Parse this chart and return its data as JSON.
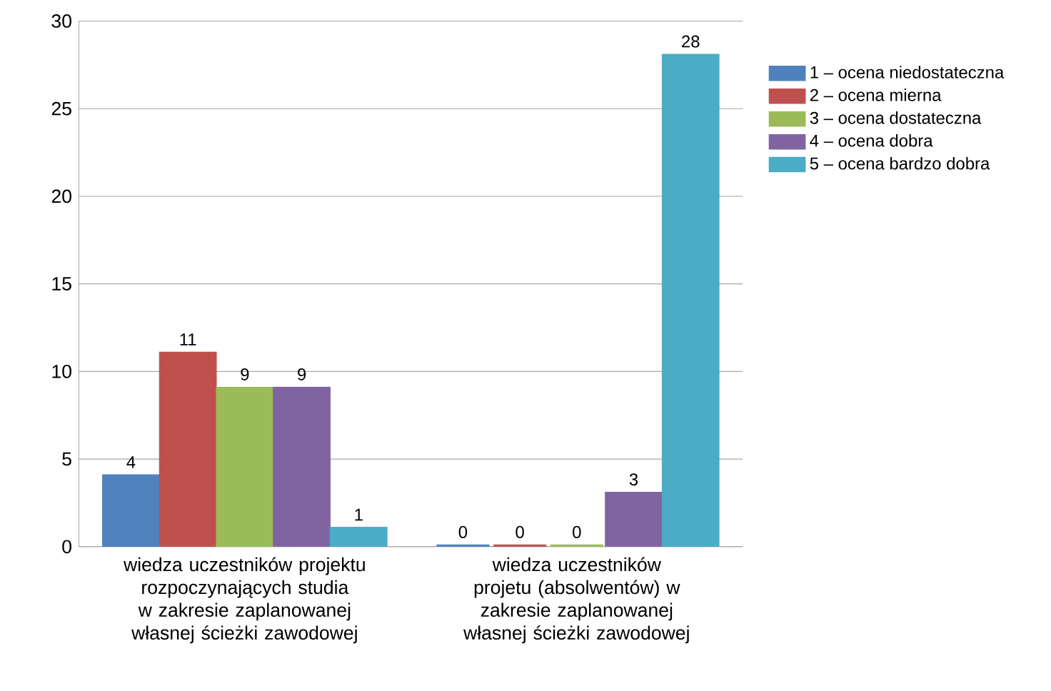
{
  "chart_data": {
    "type": "bar",
    "categories": [
      "wiedza uczestników projektu rozpoczynających studia w zakresie zaplanowanej własnej ścieżki zawodowej",
      "wiedza uczestników projetu (absolwentów) w zakresie zaplanowanej własnej ścieżki zawodowej"
    ],
    "series": [
      {
        "name": "1 – ocena niedostateczna",
        "color": "#4f81bd",
        "values": [
          4,
          0
        ]
      },
      {
        "name": "2 – ocena mierna",
        "color": "#c0504d",
        "values": [
          11,
          0
        ]
      },
      {
        "name": "3 – ocena dostateczna",
        "color": "#9bbb59",
        "values": [
          9,
          0
        ]
      },
      {
        "name": "4 – ocena dobra",
        "color": "#8064a2",
        "values": [
          9,
          3
        ]
      },
      {
        "name": "5 – ocena bardzo dobra",
        "color": "#4bacc6",
        "values": [
          1,
          28
        ]
      }
    ],
    "ylim": [
      0,
      30
    ],
    "yticks": [
      0,
      5,
      10,
      15,
      20,
      25,
      30
    ],
    "grid": "y",
    "legend": "right",
    "data_labels": true
  }
}
